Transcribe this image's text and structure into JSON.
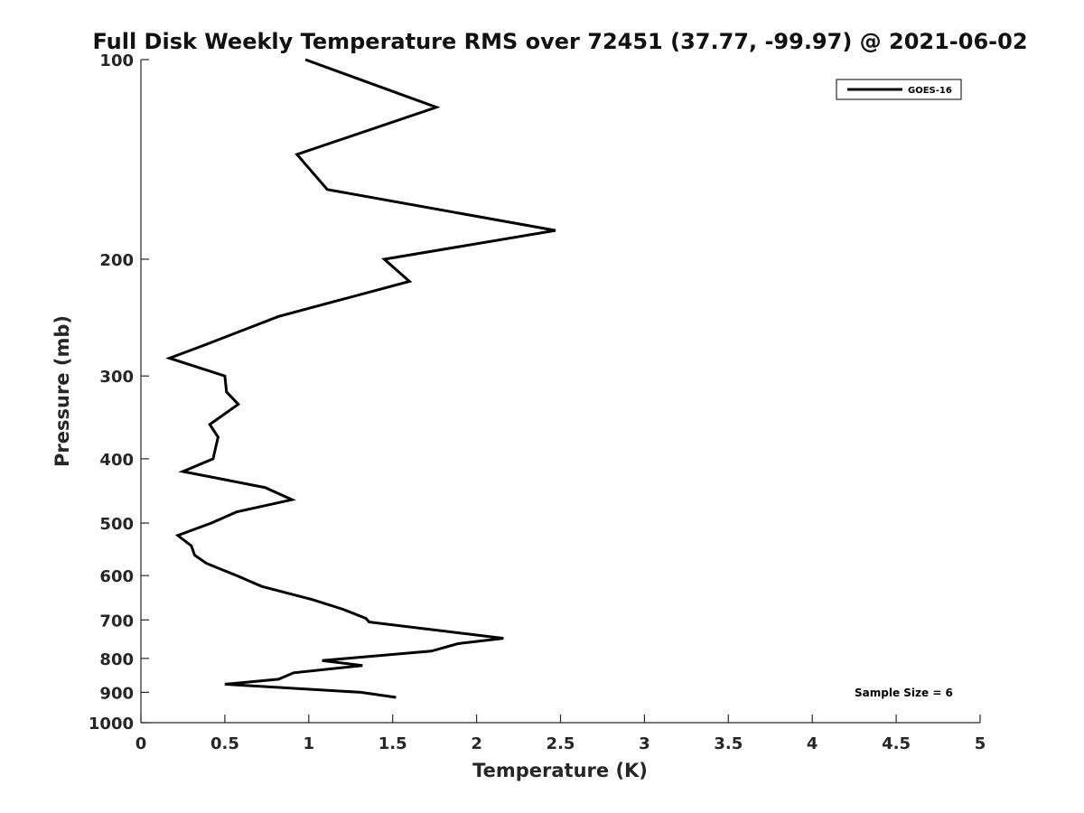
{
  "chart_data": {
    "type": "line",
    "title": "Full Disk Weekly Temperature RMS over 72451 (37.77, -99.97) @ 2021-06-02",
    "xlabel": "Temperature (K)",
    "ylabel": "Pressure (mb)",
    "xlim": [
      0,
      5
    ],
    "ylim": [
      100,
      1000
    ],
    "yscale": "log",
    "y_reversed": true,
    "grid": false,
    "legend_position": "top-right",
    "x_ticks": [
      0,
      0.5,
      1,
      1.5,
      2,
      2.5,
      3,
      3.5,
      4,
      4.5,
      5
    ],
    "x_tick_labels": [
      "0",
      "0.5",
      "1",
      "1.5",
      "2",
      "2.5",
      "3",
      "3.5",
      "4",
      "4.5",
      "5"
    ],
    "y_ticks": [
      100,
      200,
      300,
      400,
      500,
      600,
      700,
      800,
      900,
      1000
    ],
    "y_tick_labels": [
      "100",
      "200",
      "300",
      "400",
      "500",
      "600",
      "700",
      "800",
      "900",
      "1000"
    ],
    "series": [
      {
        "name": "GOES-16",
        "color": "#000000",
        "x": [
          0.98,
          1.76,
          0.93,
          1.11,
          2.47,
          1.45,
          1.6,
          0.82,
          0.37,
          0.17,
          0.5,
          0.51,
          0.58,
          0.41,
          0.46,
          0.45,
          0.43,
          0.25,
          0.74,
          0.9,
          0.57,
          0.42,
          0.22,
          0.3,
          0.32,
          0.39,
          0.57,
          0.72,
          1.02,
          1.2,
          1.34,
          1.36,
          2.16,
          1.89,
          1.73,
          1.08,
          1.32,
          0.91,
          0.82,
          0.5,
          1.31,
          1.52
        ],
        "y": [
          100,
          118,
          139,
          157,
          181,
          200,
          216,
          244,
          270,
          282,
          300,
          317,
          331,
          355,
          371,
          380,
          400,
          418,
          442,
          461,
          481,
          500,
          522,
          541,
          559,
          575,
          600,
          623,
          652,
          674,
          696,
          705,
          746,
          760,
          780,
          806,
          820,
          841,
          860,
          875,
          900,
          916
        ]
      }
    ],
    "annotations": [
      "Sample Size = 6"
    ]
  }
}
